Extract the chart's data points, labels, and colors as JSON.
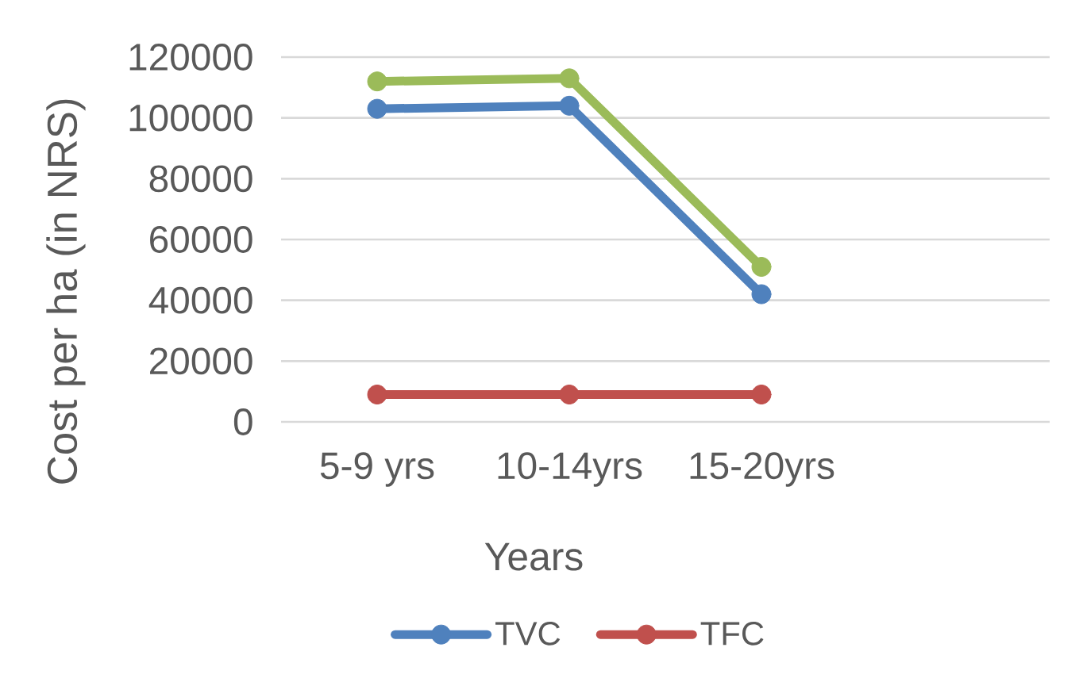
{
  "chart_data": {
    "type": "line",
    "xlabel": "Years",
    "ylabel": "Cost per ha (in NRS)",
    "categories": [
      "5-9 yrs",
      "10-14yrs",
      "15-20yrs",
      null
    ],
    "series": [
      {
        "name": "TVC",
        "color": "#4f81bd",
        "values": [
          103000,
          104000,
          42000,
          null
        ]
      },
      {
        "name": "TFC",
        "color": "#c0504d",
        "values": [
          9000,
          9000,
          9000,
          null
        ]
      },
      {
        "color": "#9bbb59",
        "values": [
          112000,
          113000,
          51000,
          null
        ]
      }
    ],
    "ylim": [
      0,
      120000
    ],
    "yticks": [
      0,
      20000,
      40000,
      60000,
      80000,
      100000,
      120000
    ],
    "grid": "y",
    "legend": "bottom",
    "marker": "circle",
    "line_style": "solid"
  }
}
